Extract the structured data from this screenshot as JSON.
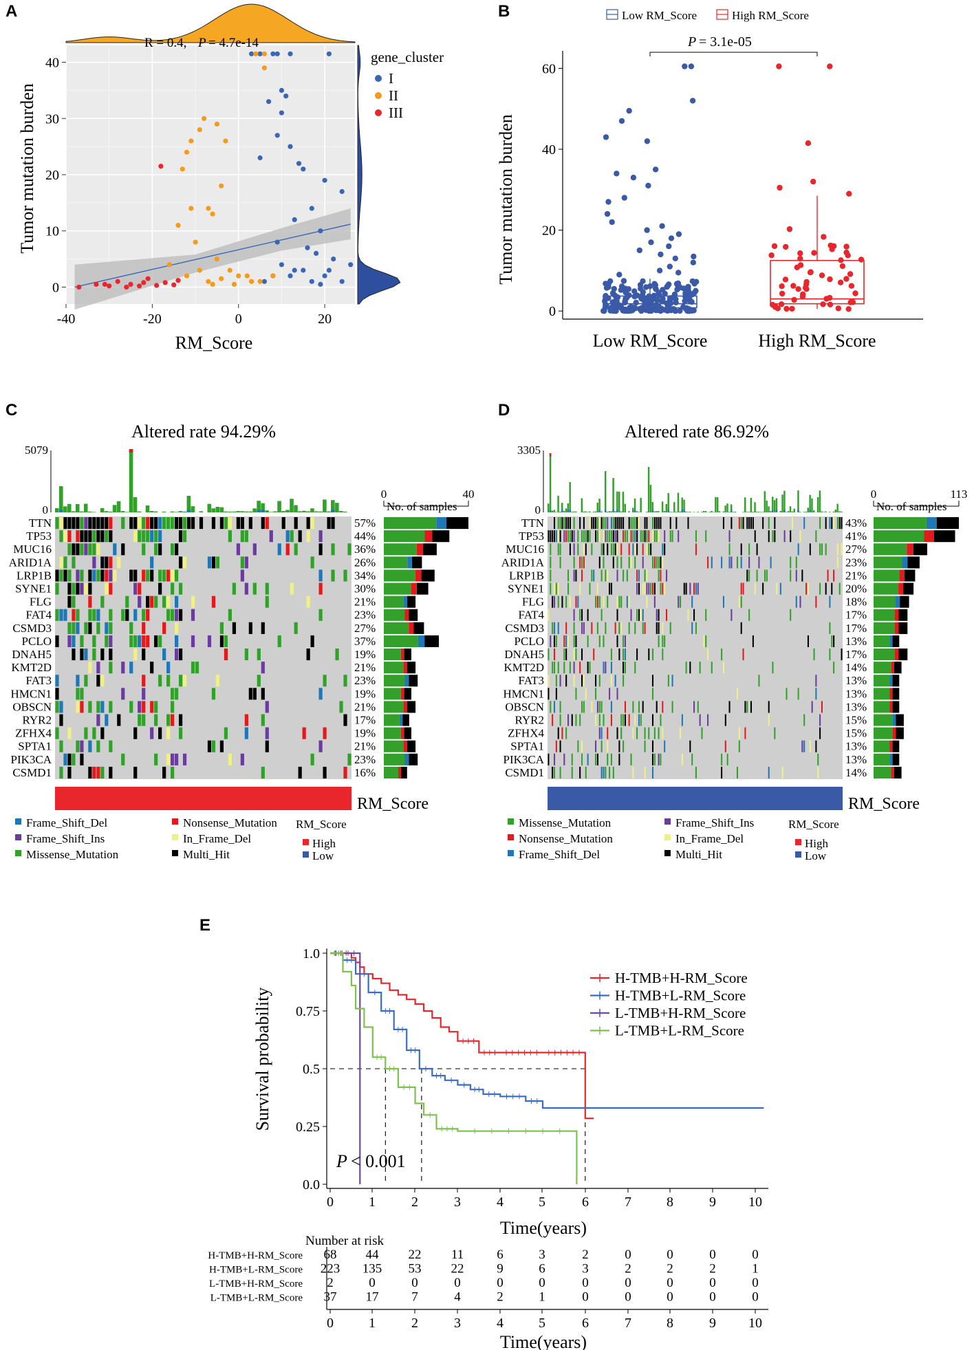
{
  "panels": {
    "A": {
      "letter": "A",
      "xlabel": "RM_Score",
      "ylabel": "Tumor mutation burden",
      "stat_r": "R = 0.4,",
      "stat_p": "P",
      "stat_p_val": "= 4.7e-14",
      "legend_title": "gene_cluster",
      "clusters": [
        {
          "label": "I",
          "color": "#3a66b8"
        },
        {
          "label": "II",
          "color": "#f59a1a"
        },
        {
          "label": "III",
          "color": "#e8262b"
        }
      ],
      "xticks": [
        "-40",
        "-20",
        "0",
        "20"
      ],
      "yticks": [
        "0",
        "10",
        "20",
        "30",
        "40"
      ]
    },
    "B": {
      "letter": "B",
      "legend": [
        {
          "label": "Low RM_Score",
          "color": "#3a5aa8"
        },
        {
          "label": "High RM_Score",
          "color": "#e8262b"
        }
      ],
      "ylabel": "Tumor mutation burden",
      "pval_p": "P",
      "pval_v": "= 3.1e-05",
      "categories": [
        "Low RM_Score",
        "High RM_Score"
      ],
      "yticks": [
        "0",
        "20",
        "40",
        "60"
      ]
    },
    "C": {
      "letter": "C",
      "title": "Altered rate 94.29%",
      "ymax": "5079",
      "ymin": "0",
      "bar_axis_min": "0",
      "bar_axis_max": "40",
      "bar_axis_label": "No. of samples",
      "annot_label": "RM_Score",
      "annot_color": "#e8262b",
      "legend": [
        {
          "label": "Frame_Shift_Del",
          "color": "#1f78b4"
        },
        {
          "label": "Frame_Shift_Ins",
          "color": "#6a3d9a"
        },
        {
          "label": "Missense_Mutation",
          "color": "#33a02c"
        },
        {
          "label": "Nonsense_Mutation",
          "color": "#e31a1c"
        },
        {
          "label": "In_Frame_Del",
          "color": "#f0f08a"
        },
        {
          "label": "Multi_Hit",
          "color": "#000000"
        }
      ],
      "rm_legend_title": "RM_Score",
      "rm_legend": [
        {
          "label": "High",
          "color": "#e8262b"
        },
        {
          "label": "Low",
          "color": "#3a5aa8"
        }
      ],
      "genes": [
        {
          "name": "TTN",
          "pct": "57%",
          "n": 40
        },
        {
          "name": "TP53",
          "pct": "44%",
          "n": 31
        },
        {
          "name": "MUC16",
          "pct": "36%",
          "n": 25
        },
        {
          "name": "ARID1A",
          "pct": "26%",
          "n": 18
        },
        {
          "name": "LRP1B",
          "pct": "34%",
          "n": 24
        },
        {
          "name": "SYNE1",
          "pct": "30%",
          "n": 21
        },
        {
          "name": "FLG",
          "pct": "21%",
          "n": 15
        },
        {
          "name": "FAT4",
          "pct": "23%",
          "n": 16
        },
        {
          "name": "CSMD3",
          "pct": "27%",
          "n": 19
        },
        {
          "name": "PCLO",
          "pct": "37%",
          "n": 26
        },
        {
          "name": "DNAH5",
          "pct": "19%",
          "n": 13
        },
        {
          "name": "KMT2D",
          "pct": "21%",
          "n": 15
        },
        {
          "name": "FAT3",
          "pct": "23%",
          "n": 16
        },
        {
          "name": "HMCN1",
          "pct": "19%",
          "n": 13
        },
        {
          "name": "OBSCN",
          "pct": "21%",
          "n": 15
        },
        {
          "name": "RYR2",
          "pct": "17%",
          "n": 12
        },
        {
          "name": "ZFHX4",
          "pct": "19%",
          "n": 13
        },
        {
          "name": "SPTA1",
          "pct": "21%",
          "n": 15
        },
        {
          "name": "PIK3CA",
          "pct": "23%",
          "n": 16
        },
        {
          "name": "CSMD1",
          "pct": "16%",
          "n": 11
        }
      ]
    },
    "D": {
      "letter": "D",
      "title": "Altered rate 86.92%",
      "ymax": "3305",
      "ymin": "0",
      "bar_axis_min": "0",
      "bar_axis_max": "113",
      "bar_axis_label": "No. of samples",
      "annot_label": "RM_Score",
      "annot_color": "#3a5aa8",
      "legend": [
        {
          "label": "Missense_Mutation",
          "color": "#33a02c"
        },
        {
          "label": "Nonsense_Mutation",
          "color": "#e31a1c"
        },
        {
          "label": "Frame_Shift_Del",
          "color": "#1f78b4"
        },
        {
          "label": "Frame_Shift_Ins",
          "color": "#6a3d9a"
        },
        {
          "label": "In_Frame_Del",
          "color": "#f0f08a"
        },
        {
          "label": "Multi_Hit",
          "color": "#000000"
        }
      ],
      "rm_legend_title": "RM_Score",
      "rm_legend": [
        {
          "label": "High",
          "color": "#e8262b"
        },
        {
          "label": "Low",
          "color": "#3a5aa8"
        }
      ],
      "genes": [
        {
          "name": "TTN",
          "pct": "43%",
          "n": 113
        },
        {
          "name": "TP53",
          "pct": "41%",
          "n": 108
        },
        {
          "name": "MUC16",
          "pct": "27%",
          "n": 71
        },
        {
          "name": "ARID1A",
          "pct": "23%",
          "n": 61
        },
        {
          "name": "LRP1B",
          "pct": "21%",
          "n": 55
        },
        {
          "name": "SYNE1",
          "pct": "20%",
          "n": 53
        },
        {
          "name": "FLG",
          "pct": "18%",
          "n": 47
        },
        {
          "name": "FAT4",
          "pct": "17%",
          "n": 45
        },
        {
          "name": "CSMD3",
          "pct": "17%",
          "n": 45
        },
        {
          "name": "PCLO",
          "pct": "13%",
          "n": 34
        },
        {
          "name": "DNAH5",
          "pct": "17%",
          "n": 45
        },
        {
          "name": "KMT2D",
          "pct": "14%",
          "n": 37
        },
        {
          "name": "FAT3",
          "pct": "13%",
          "n": 34
        },
        {
          "name": "HMCN1",
          "pct": "13%",
          "n": 34
        },
        {
          "name": "OBSCN",
          "pct": "13%",
          "n": 34
        },
        {
          "name": "RYR2",
          "pct": "15%",
          "n": 40
        },
        {
          "name": "ZFHX4",
          "pct": "15%",
          "n": 40
        },
        {
          "name": "SPTA1",
          "pct": "13%",
          "n": 34
        },
        {
          "name": "PIK3CA",
          "pct": "13%",
          "n": 34
        },
        {
          "name": "CSMD1",
          "pct": "14%",
          "n": 37
        }
      ]
    },
    "E": {
      "letter": "E",
      "ylabel": "Survival probability",
      "xlabel": "Time(years)",
      "pval_p": "P",
      "pval_v": "< 0.001",
      "yticks": [
        "0.0",
        "0.25",
        "0.5",
        "0.75",
        "1.0"
      ],
      "xticks": [
        "0",
        "1",
        "2",
        "3",
        "4",
        "5",
        "6",
        "7",
        "8",
        "9",
        "10"
      ],
      "risk_title": "Number at risk",
      "risk_xlabel": "Time(years)",
      "groups": [
        {
          "name": "H-TMB+H-RM_Score",
          "color": "#e8262b",
          "risk": [
            "68",
            "44",
            "22",
            "11",
            "6",
            "3",
            "2",
            "0",
            "0",
            "0",
            "0"
          ]
        },
        {
          "name": "H-TMB+L-RM_Score",
          "color": "#3a6cc4",
          "risk": [
            "223",
            "135",
            "53",
            "22",
            "9",
            "6",
            "3",
            "2",
            "2",
            "2",
            "1"
          ]
        },
        {
          "name": "L-TMB+H-RM_Score",
          "color": "#6a4aa0",
          "risk": [
            "2",
            "0",
            "0",
            "0",
            "0",
            "0",
            "0",
            "0",
            "0",
            "0",
            "0"
          ]
        },
        {
          "name": "L-TMB+L-RM_Score",
          "color": "#7dc24a",
          "risk": [
            "37",
            "17",
            "7",
            "4",
            "2",
            "1",
            "0",
            "0",
            "0",
            "0",
            "0"
          ]
        }
      ]
    }
  },
  "chart_data": [
    {
      "type": "scatter",
      "title": "",
      "xlabel": "RM_Score",
      "ylabel": "Tumor mutation burden",
      "xlim": [
        -40,
        27
      ],
      "ylim": [
        -3,
        43
      ],
      "annotation": "R = 0.4, P = 4.7e-14",
      "series": [
        {
          "name": "I",
          "points": [
            [
              3,
              41.5
            ],
            [
              5,
              41.5
            ],
            [
              8,
              41.5
            ],
            [
              9,
              41.5
            ],
            [
              12,
              41.5
            ],
            [
              21,
              41.5
            ],
            [
              7,
              33
            ],
            [
              10,
              35
            ],
            [
              11,
              34
            ],
            [
              10,
              31
            ],
            [
              9,
              27
            ],
            [
              12,
              25
            ],
            [
              5,
              23
            ],
            [
              14,
              22
            ],
            [
              15,
              21
            ],
            [
              20,
              19
            ],
            [
              24,
              17
            ],
            [
              17,
              14
            ],
            [
              13,
              12
            ],
            [
              19,
              10
            ],
            [
              9,
              8
            ],
            [
              16,
              7
            ],
            [
              18,
              6
            ],
            [
              22,
              5
            ],
            [
              26,
              4
            ],
            [
              15,
              3
            ],
            [
              20,
              2
            ],
            [
              24,
              1
            ],
            [
              10,
              4
            ],
            [
              13,
              3
            ],
            [
              8,
              2
            ],
            [
              17,
              1
            ],
            [
              12,
              2
            ],
            [
              21,
              3
            ],
            [
              6,
              1
            ],
            [
              19,
              0.5
            ]
          ]
        },
        {
          "name": "II",
          "points": [
            [
              4,
              41.5
            ],
            [
              6,
              41.5
            ],
            [
              6,
              39
            ],
            [
              -8,
              30
            ],
            [
              -5,
              29
            ],
            [
              -9,
              28
            ],
            [
              -11,
              26
            ],
            [
              -3,
              26
            ],
            [
              -12,
              24
            ],
            [
              -13,
              21
            ],
            [
              -4,
              18
            ],
            [
              -7,
              14
            ],
            [
              -11,
              14
            ],
            [
              -6,
              13
            ],
            [
              -14,
              11
            ],
            [
              -10,
              8
            ],
            [
              -5,
              5
            ],
            [
              -16,
              4
            ],
            [
              -9,
              3
            ],
            [
              -2,
              3
            ],
            [
              0,
              2
            ],
            [
              3,
              1
            ],
            [
              -7,
              1
            ],
            [
              -12,
              2
            ],
            [
              -4,
              1.5
            ],
            [
              2,
              2
            ],
            [
              5,
              1
            ],
            [
              8,
              2
            ],
            [
              -1,
              0.5
            ],
            [
              -6,
              0.5
            ]
          ]
        },
        {
          "name": "III",
          "points": [
            [
              -18,
              21.5
            ],
            [
              -37,
              0
            ],
            [
              -33,
              0.5
            ],
            [
              -30,
              0.2
            ],
            [
              -28,
              1
            ],
            [
              -25,
              0.5
            ],
            [
              -23,
              0.2
            ],
            [
              -21,
              1.5
            ],
            [
              -19,
              0.3
            ],
            [
              -17,
              0.8
            ],
            [
              -15,
              0.4
            ],
            [
              -14,
              1.2
            ],
            [
              -26,
              0
            ],
            [
              -22,
              0.8
            ],
            [
              -31,
              0.5
            ]
          ]
        }
      ]
    },
    {
      "type": "box",
      "title": "",
      "ylabel": "Tumor mutation burden",
      "ylim": [
        -2,
        65
      ],
      "categories": [
        "Low RM_Score",
        "High RM_Score"
      ],
      "series": [
        {
          "name": "Low RM_Score",
          "q1": 0.8,
          "median": 1.8,
          "q3": 3.7,
          "whisker_low": 0,
          "whisker_high": 8,
          "outliers": [
            60.5,
            60.5,
            52,
            49.5,
            47,
            43,
            42,
            35,
            34,
            33,
            31,
            28,
            27,
            24,
            22,
            21,
            20,
            19,
            18,
            17,
            16,
            15,
            14,
            13.5,
            13,
            12,
            11,
            10,
            9.5,
            9
          ]
        },
        {
          "name": "High RM_Score",
          "q1": 1.8,
          "median": 3,
          "q3": 12.5,
          "whisker_low": 0.5,
          "whisker_high": 28.5,
          "outliers": [
            60.5,
            60.5,
            41.5,
            32,
            30.5,
            29
          ]
        }
      ],
      "annotation": "P = 3.1e-05"
    },
    {
      "type": "line",
      "title": "",
      "xlabel": "Time(years)",
      "ylabel": "Survival probability",
      "xlim": [
        0,
        10.3
      ],
      "ylim": [
        0,
        1
      ],
      "annotation": "P < 0.001",
      "series": [
        {
          "name": "H-TMB+H-RM_Score",
          "x": [
            0,
            0.5,
            0.6,
            0.7,
            0.8,
            1.0,
            1.2,
            1.4,
            1.6,
            1.8,
            2.0,
            2.2,
            2.4,
            2.6,
            2.8,
            3.0,
            3.5,
            4.0,
            5.0,
            6.0,
            6.0,
            6.2
          ],
          "y": [
            1.0,
            0.98,
            0.96,
            0.94,
            0.91,
            0.89,
            0.87,
            0.84,
            0.82,
            0.8,
            0.78,
            0.75,
            0.72,
            0.68,
            0.66,
            0.62,
            0.57,
            0.57,
            0.57,
            0.57,
            0.285,
            0.285
          ]
        },
        {
          "name": "H-TMB+L-RM_Score",
          "x": [
            0,
            0.3,
            0.6,
            0.9,
            1.2,
            1.5,
            1.8,
            2.1,
            2.4,
            2.7,
            3.0,
            3.3,
            3.6,
            4.0,
            4.6,
            5.0,
            10.2
          ],
          "y": [
            1.0,
            0.97,
            0.91,
            0.83,
            0.75,
            0.67,
            0.58,
            0.5,
            0.47,
            0.45,
            0.43,
            0.41,
            0.39,
            0.38,
            0.36,
            0.33,
            0.33
          ]
        },
        {
          "name": "L-TMB+H-RM_Score",
          "x": [
            0,
            0.7,
            0.7
          ],
          "y": [
            1.0,
            1.0,
            0.0
          ]
        },
        {
          "name": "L-TMB+L-RM_Score",
          "x": [
            0,
            0.3,
            0.5,
            0.6,
            0.8,
            1.0,
            1.3,
            1.6,
            2.0,
            2.2,
            2.5,
            3.0,
            5.8,
            5.8
          ],
          "y": [
            1.0,
            0.92,
            0.86,
            0.76,
            0.68,
            0.55,
            0.5,
            0.42,
            0.35,
            0.3,
            0.24,
            0.23,
            0.23,
            0.0
          ]
        }
      ]
    },
    {
      "type": "bar",
      "title": "Altered rate 94.29%",
      "categories": [
        "TTN",
        "TP53",
        "MUC16",
        "ARID1A",
        "LRP1B",
        "SYNE1",
        "FLG",
        "FAT4",
        "CSMD3",
        "PCLO",
        "DNAH5",
        "KMT2D",
        "FAT3",
        "HMCN1",
        "OBSCN",
        "RYR2",
        "ZFHX4",
        "SPTA1",
        "PIK3CA",
        "CSMD1"
      ],
      "values": [
        57,
        44,
        36,
        26,
        34,
        30,
        21,
        23,
        27,
        37,
        19,
        21,
        23,
        19,
        21,
        17,
        19,
        21,
        23,
        16
      ]
    },
    {
      "type": "bar",
      "title": "Altered rate 86.92%",
      "categories": [
        "TTN",
        "TP53",
        "MUC16",
        "ARID1A",
        "LRP1B",
        "SYNE1",
        "FLG",
        "FAT4",
        "CSMD3",
        "PCLO",
        "DNAH5",
        "KMT2D",
        "FAT3",
        "HMCN1",
        "OBSCN",
        "RYR2",
        "ZFHX4",
        "SPTA1",
        "PIK3CA",
        "CSMD1"
      ],
      "values": [
        43,
        41,
        27,
        23,
        21,
        20,
        18,
        17,
        17,
        13,
        17,
        14,
        13,
        13,
        13,
        15,
        15,
        13,
        13,
        14
      ]
    }
  ]
}
